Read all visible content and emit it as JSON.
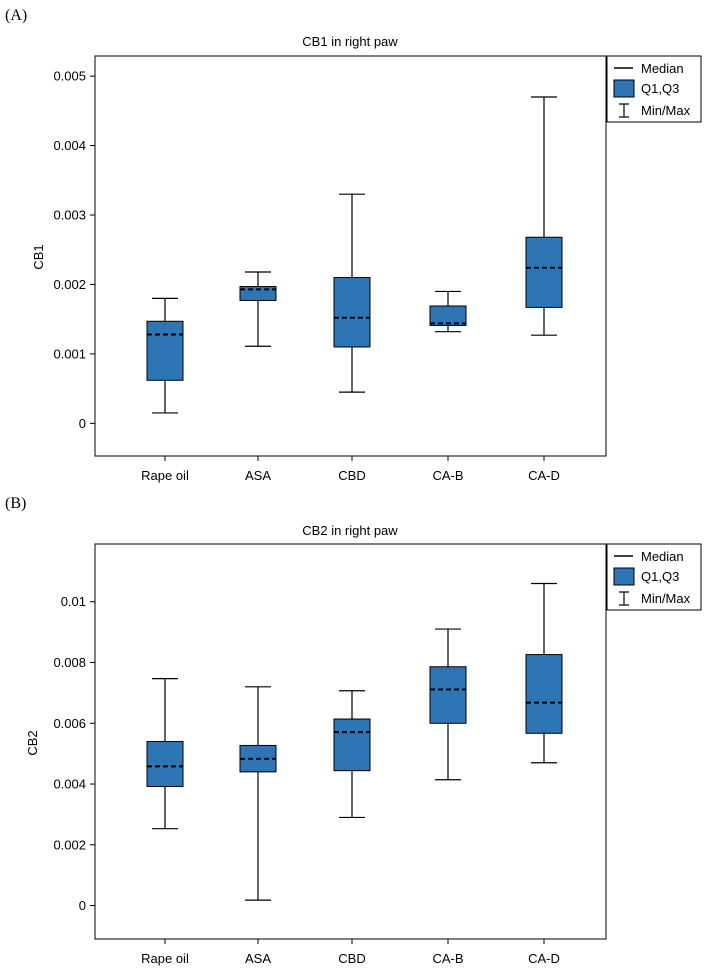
{
  "figure": {
    "colors": {
      "box_fill": "#2e75b6",
      "line": "#000000",
      "background": "#ffffff"
    }
  },
  "legend": {
    "median_label": "Median",
    "q_label": "Q1,Q3",
    "minmax_label": "Min/Max"
  },
  "chart_data": [
    {
      "panel_label": "(A)",
      "type": "box",
      "title": "CB1 in right paw",
      "ylabel": "CB1",
      "xlabel": "",
      "categories": [
        "Rape oil",
        "ASA",
        "CBD",
        "CA-B",
        "CA-D"
      ],
      "yticks": [
        "0",
        "0.001",
        "0.002",
        "0.003",
        "0.004",
        "0.005"
      ],
      "ylim": [
        -0.00047,
        0.00529
      ],
      "grid": false,
      "legend_position": "top-right outside",
      "boxes": [
        {
          "min": 0.00015,
          "q1": 0.00062,
          "median": 0.00128,
          "q3": 0.00147,
          "max": 0.0018
        },
        {
          "min": 0.00111,
          "q1": 0.00177,
          "median": 0.00193,
          "q3": 0.00197,
          "max": 0.00218
        },
        {
          "min": 0.00045,
          "q1": 0.0011,
          "median": 0.00152,
          "q3": 0.0021,
          "max": 0.0033
        },
        {
          "min": 0.00132,
          "q1": 0.00141,
          "median": 0.00144,
          "q3": 0.00169,
          "max": 0.0019
        },
        {
          "min": 0.00127,
          "q1": 0.00167,
          "median": 0.00224,
          "q3": 0.00268,
          "max": 0.0047
        }
      ]
    },
    {
      "panel_label": "(B)",
      "type": "box",
      "title": "CB2 in right paw",
      "ylabel": "CB2",
      "xlabel": "",
      "categories": [
        "Rape oil",
        "ASA",
        "CBD",
        "CA-B",
        "CA-D"
      ],
      "yticks": [
        "0",
        "0.002",
        "0.004",
        "0.006",
        "0.008",
        "0.01"
      ],
      "ylim": [
        -0.0011,
        0.0119
      ],
      "grid": false,
      "legend_position": "top-right outside",
      "boxes": [
        {
          "min": 0.00253,
          "q1": 0.00392,
          "median": 0.00458,
          "q3": 0.0054,
          "max": 0.00747
        },
        {
          "min": 0.00018,
          "q1": 0.0044,
          "median": 0.00483,
          "q3": 0.00527,
          "max": 0.0072
        },
        {
          "min": 0.0029,
          "q1": 0.00444,
          "median": 0.00571,
          "q3": 0.00614,
          "max": 0.00707
        },
        {
          "min": 0.00414,
          "q1": 0.006,
          "median": 0.00711,
          "q3": 0.00786,
          "max": 0.0091
        },
        {
          "min": 0.0047,
          "q1": 0.00567,
          "median": 0.00668,
          "q3": 0.00826,
          "max": 0.0106
        }
      ]
    }
  ]
}
